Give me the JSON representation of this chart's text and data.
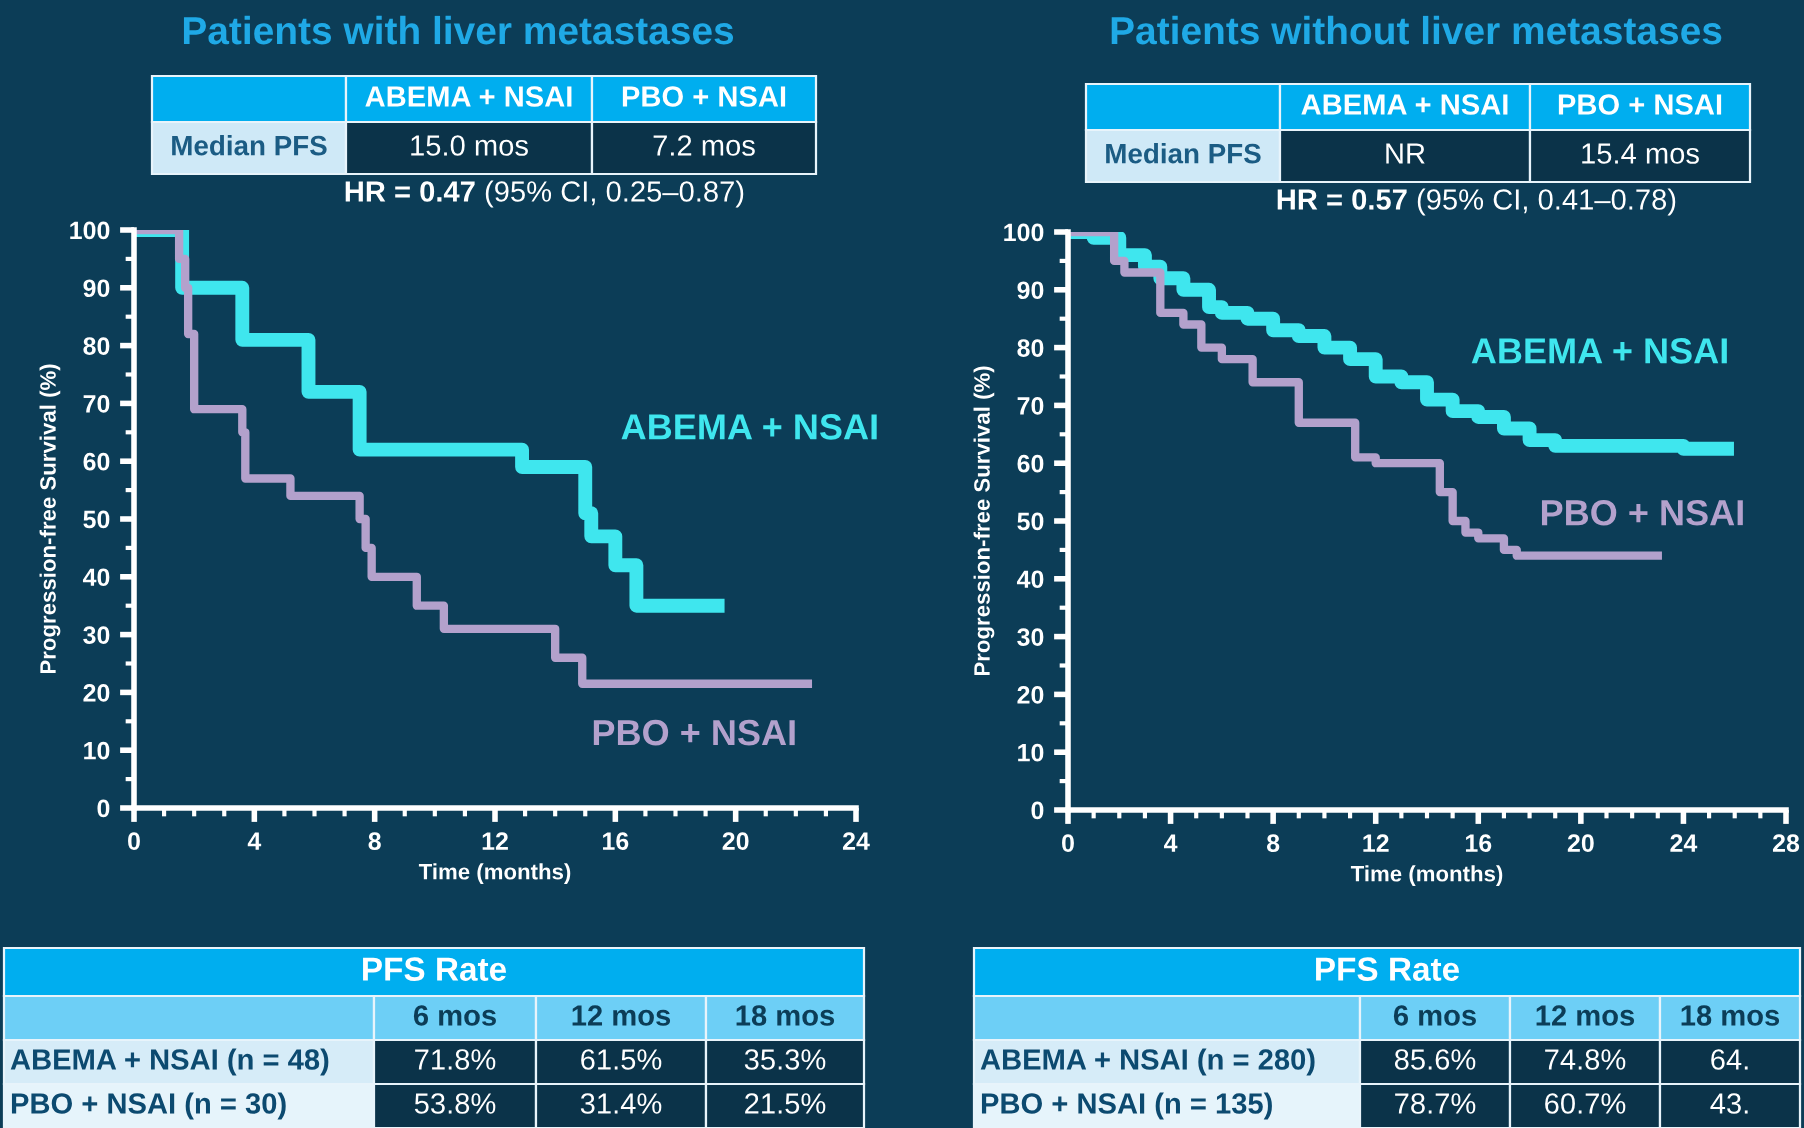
{
  "chart_data": [
    {
      "type": "step",
      "title": "Patients with liver metastases",
      "xlabel": "Time (months)",
      "ylabel": "Progression-free Survival (%)",
      "xlim": [
        0,
        24
      ],
      "xticks": [
        0,
        4,
        8,
        12,
        16,
        20,
        24
      ],
      "ylim": [
        0,
        100
      ],
      "yticks": [
        0,
        10,
        20,
        30,
        40,
        50,
        60,
        70,
        80,
        90,
        100
      ],
      "series": [
        {
          "name": "ABEMA + NSAI",
          "color": "#3fe6ee",
          "x": [
            0,
            1.5,
            1.6,
            3.4,
            3.6,
            5.6,
            5.8,
            7.25,
            7.5,
            12.9,
            14.9,
            15.0,
            15.2,
            16.0,
            16.7,
            19.4
          ],
          "values": [
            100,
            100,
            90,
            90,
            81,
            81,
            72,
            72,
            62,
            59,
            59,
            51,
            47,
            42,
            35,
            35
          ]
        },
        {
          "name": "PBO + NSAI",
          "color": "#b3a1cc",
          "x": [
            0,
            1.3,
            1.5,
            1.7,
            1.8,
            2.0,
            3.5,
            3.6,
            3.7,
            5.2,
            7.4,
            7.5,
            7.7,
            7.9,
            9.4,
            10.3,
            14.0,
            14.9,
            22.4
          ],
          "values": [
            100,
            100,
            95,
            90,
            82,
            69,
            69,
            65,
            57,
            54,
            54,
            50,
            45,
            40,
            35,
            31,
            26,
            21.5,
            21.5
          ]
        }
      ],
      "annotations": [
        "ABEMA + NSAI",
        "PBO + NSAI",
        "Median PFS",
        "15.0 mos",
        "7.2 mos",
        "HR = 0.47",
        "(95% CI, 0.25–0.87)",
        "PFS Rate",
        "6 mos",
        "12 mos",
        "18 mos",
        "ABEMA + NSAI (n = 48)",
        "71.8%",
        "61.5%",
        "35.3%",
        "PBO + NSAI (n = 30)",
        "53.8%",
        "31.4%",
        "21.5%"
      ]
    },
    {
      "type": "step",
      "title": "Patients without liver metastases",
      "xlabel": "Time (months)",
      "ylabel": "Progression-free Survival (%)",
      "xlim": [
        0,
        28
      ],
      "xticks": [
        0,
        4,
        8,
        12,
        16,
        20,
        24,
        28
      ],
      "ylim": [
        0,
        100
      ],
      "yticks": [
        0,
        10,
        20,
        30,
        40,
        50,
        60,
        70,
        80,
        90,
        100
      ],
      "series": [
        {
          "name": "ABEMA + NSAI",
          "color": "#3fe6ee",
          "x": [
            0,
            1,
            2,
            3,
            3.6,
            4.5,
            5.5,
            6,
            7,
            8,
            9,
            10,
            11,
            12,
            13,
            14,
            15,
            16,
            17,
            18,
            19,
            20,
            24,
            25.7
          ],
          "values": [
            100,
            99,
            96,
            94,
            92,
            90,
            87,
            86,
            85,
            83,
            82,
            80,
            78,
            75,
            74,
            71,
            69,
            68,
            66,
            64,
            63,
            63,
            62.5,
            62.5
          ]
        },
        {
          "name": "PBO + NSAI",
          "color": "#b3a1cc",
          "x": [
            0,
            1.2,
            1.8,
            2.2,
            3.5,
            3.6,
            4.5,
            5.2,
            6,
            7.2,
            9,
            10.8,
            11.2,
            12,
            13.8,
            14.5,
            15,
            15.5,
            16,
            17,
            17.5,
            23
          ],
          "values": [
            100,
            100,
            95,
            93,
            93,
            86,
            84,
            80,
            78,
            74,
            67,
            67,
            61,
            60,
            60,
            55,
            50,
            48,
            47,
            45,
            44,
            44
          ]
        }
      ],
      "annotations": [
        "ABEMA + NSAI",
        "PBO + NSAI",
        "Median PFS",
        "NR",
        "15.4 mos",
        "HR = 0.57",
        "(95% CI, 0.41–0.78)",
        "PFS Rate",
        "6 mos",
        "12 mos",
        "18 mos",
        "ABEMA + NSAI (n = 280)",
        "85.6%",
        "74.8%",
        "64.",
        "PBO + NSAI (n = 135)",
        "78.7%",
        "60.7%",
        "43."
      ]
    }
  ]
}
